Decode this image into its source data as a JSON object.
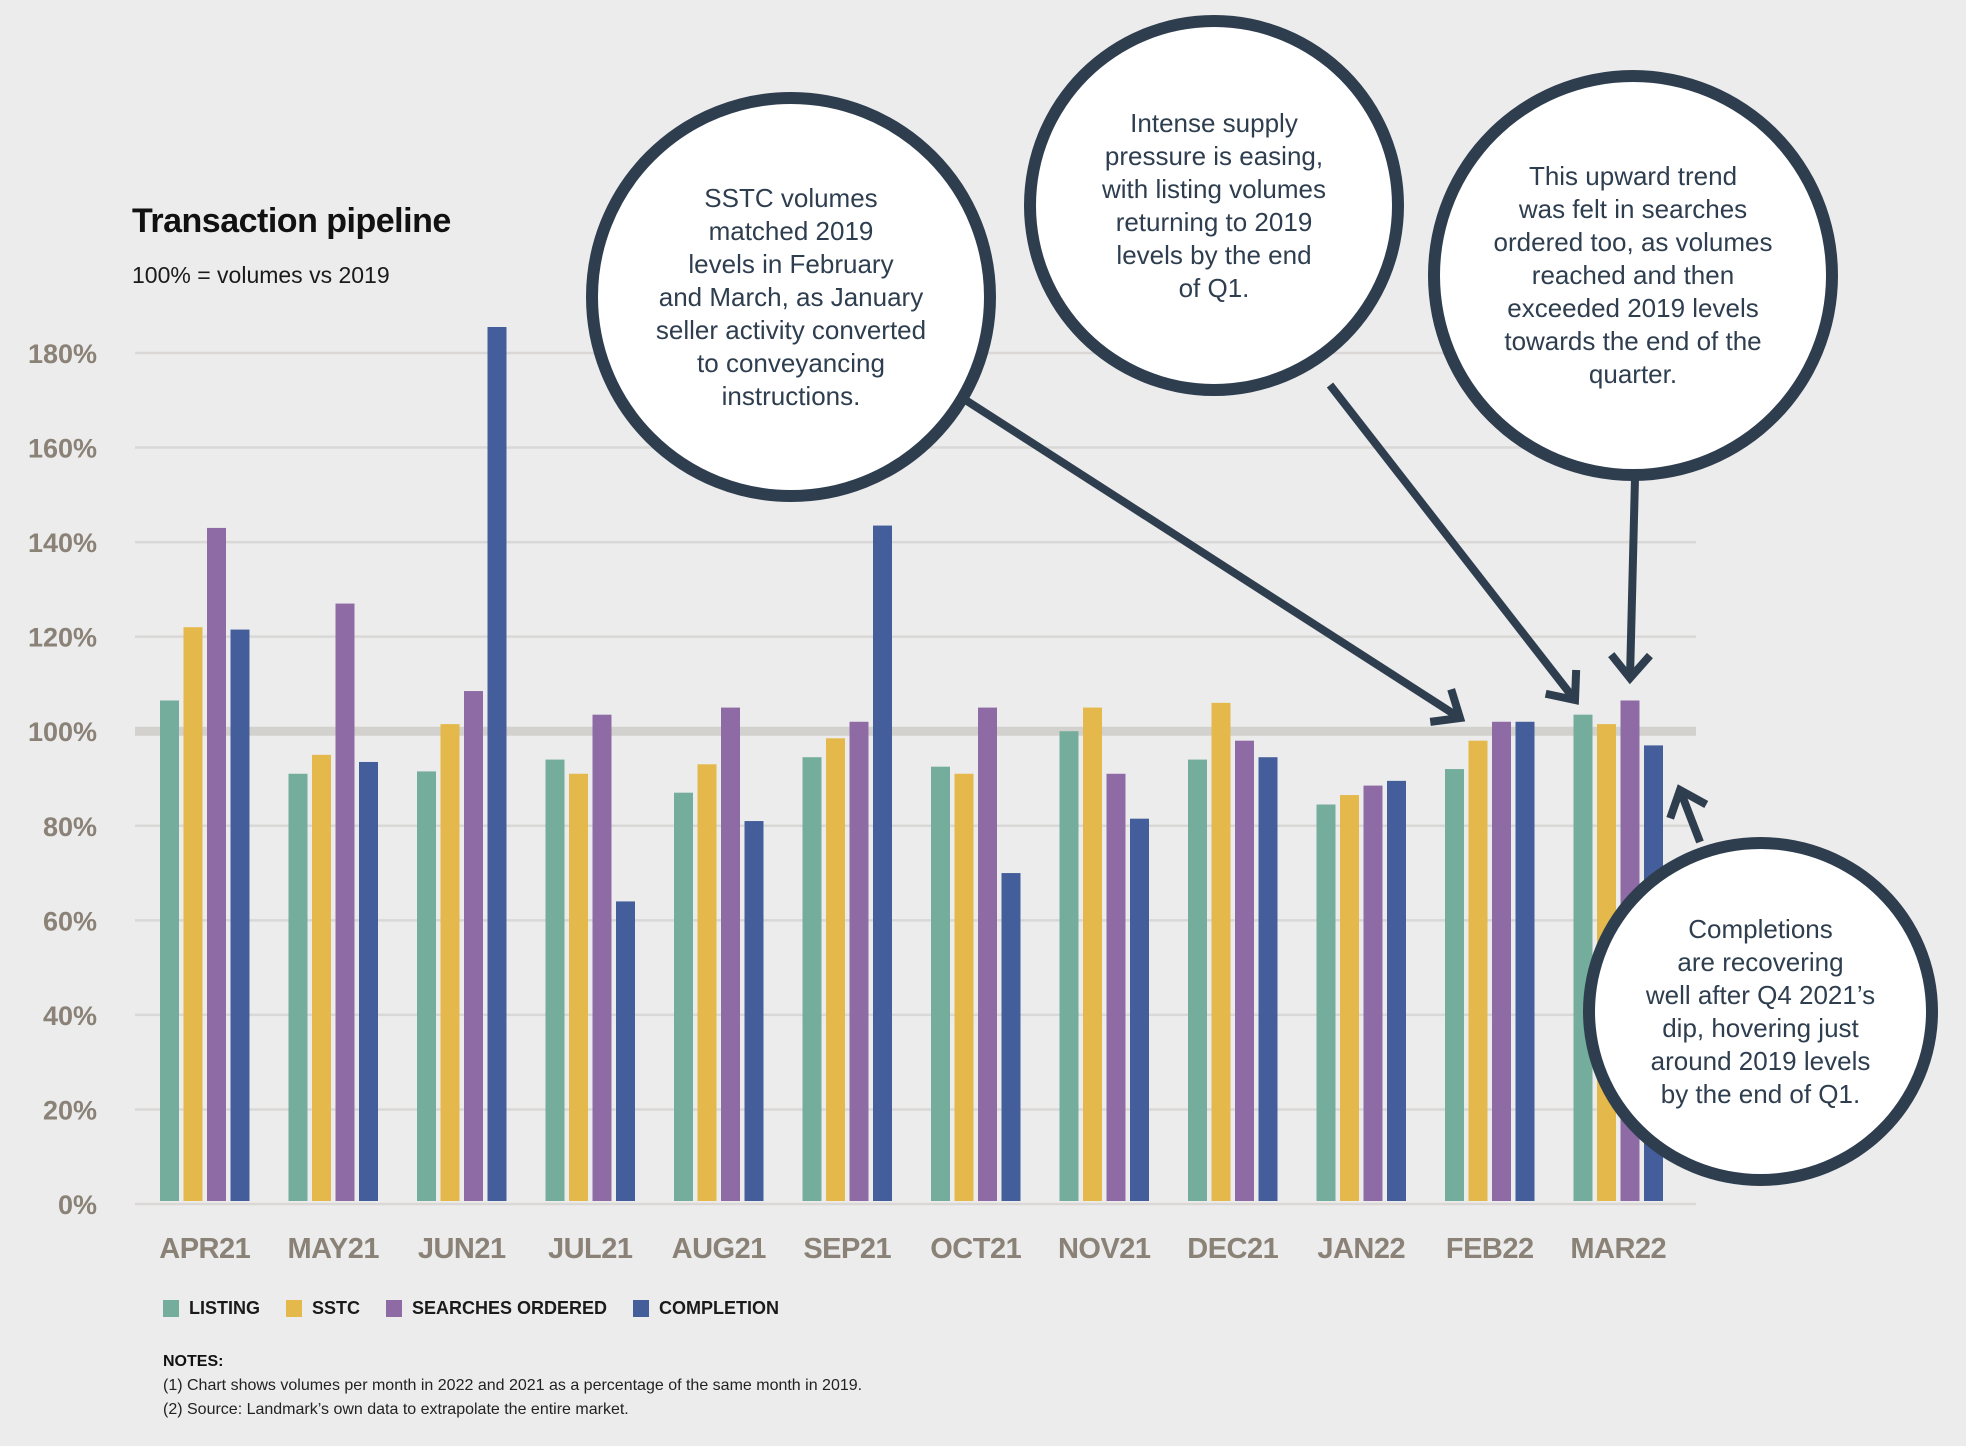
{
  "header": {
    "title": "Transaction pipeline",
    "subtitle": "100% = volumes vs 2019"
  },
  "legend": [
    {
      "label": "LISTING",
      "color": "#74ad9b"
    },
    {
      "label": "SSTC",
      "color": "#e4b84a"
    },
    {
      "label": "SEARCHES ORDERED",
      "color": "#8f6ba6"
    },
    {
      "label": "COMPLETION",
      "color": "#435e9b"
    }
  ],
  "notes": {
    "title": "NOTES:",
    "lines": [
      "(1) Chart shows volumes per month in 2022 and 2021 as a percentage of the same month in 2019.",
      "(2) Source: Landmark’s own data to extrapolate the entire market."
    ]
  },
  "callouts": [
    {
      "id": "sstc",
      "lines": [
        "SSTC volumes",
        "matched 2019",
        "levels in February",
        "and March, as January",
        "seller activity converted",
        "to conveyancing",
        "instructions."
      ],
      "points_to": {
        "month": "FEB22",
        "series": "SSTC"
      }
    },
    {
      "id": "listing",
      "lines": [
        "Intense supply",
        "pressure is easing,",
        "with listing volumes",
        "returning to 2019",
        "levels by the end",
        "of Q1."
      ],
      "points_to": {
        "month": "MAR22",
        "series": "Listing"
      }
    },
    {
      "id": "searches",
      "lines": [
        "This upward trend",
        "was felt in searches",
        "ordered too, as volumes",
        "reached and then",
        "exceeded 2019 levels",
        "towards the end of the",
        "quarter."
      ],
      "points_to": {
        "month": "MAR22",
        "series": "Searches Ordered"
      }
    },
    {
      "id": "completions",
      "lines": [
        "Completions",
        "are recovering",
        "well after Q4 2021’s",
        "dip, hovering just",
        "around 2019 levels",
        "by the end of Q1."
      ],
      "points_to": {
        "month": "MAR22",
        "series": "Completion"
      }
    }
  ],
  "chart_data": {
    "type": "bar",
    "title": "Transaction pipeline",
    "subtitle": "100% = volumes vs 2019",
    "xlabel": "",
    "ylabel": "",
    "ylim": [
      0,
      180
    ],
    "yticks": [
      0,
      20,
      40,
      60,
      80,
      100,
      120,
      140,
      160,
      180
    ],
    "ytick_labels": [
      "0%",
      "20%",
      "40%",
      "60%",
      "80%",
      "100%",
      "120%",
      "140%",
      "160%",
      "180%"
    ],
    "reference_line": 100,
    "grid": true,
    "legend_position": "bottom-left",
    "categories": [
      "APR21",
      "MAY21",
      "JUN21",
      "JUL21",
      "AUG21",
      "SEP21",
      "OCT21",
      "NOV21",
      "DEC21",
      "JAN22",
      "FEB22",
      "MAR22"
    ],
    "series": [
      {
        "name": "Listing",
        "color": "#74ad9b",
        "values": [
          106.5,
          91,
          91.5,
          94,
          87,
          94.5,
          92.5,
          100,
          94,
          84.5,
          92,
          103.5
        ]
      },
      {
        "name": "SSTC",
        "color": "#e4b84a",
        "values": [
          122,
          95,
          101.5,
          91,
          93,
          98.5,
          91,
          105,
          106,
          86.5,
          98,
          101.5
        ]
      },
      {
        "name": "Searches Ordered",
        "color": "#8f6ba6",
        "values": [
          143,
          127,
          108.5,
          103.5,
          105,
          102,
          105,
          91,
          98,
          88.5,
          102,
          106.5
        ]
      },
      {
        "name": "Completion",
        "color": "#435e9b",
        "values": [
          121.5,
          93.5,
          185.5,
          64,
          81,
          143.5,
          70,
          81.5,
          94.5,
          89.5,
          102,
          97
        ]
      }
    ]
  }
}
